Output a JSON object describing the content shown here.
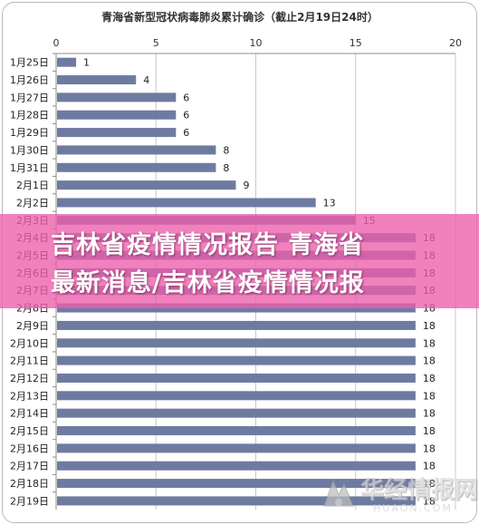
{
  "chart_data": {
    "type": "bar",
    "orientation": "horizontal",
    "title": "青海省新型冠状病毒肺炎累计确诊（截止2月19日24时）",
    "categories": [
      "1月25日",
      "1月26日",
      "1月27日",
      "1月28日",
      "1月29日",
      "1月30日",
      "1月31日",
      "2月1日",
      "2月2日",
      "2月3日",
      "2月4日",
      "2月5日",
      "2月6日",
      "2月7日",
      "2月8日",
      "2月9日",
      "2月10日",
      "2月11日",
      "2月12日",
      "2月13日",
      "2月14日",
      "2月15日",
      "2月16日",
      "2月17日",
      "2月18日",
      "2月19日"
    ],
    "values": [
      1,
      4,
      6,
      6,
      6,
      8,
      8,
      9,
      13,
      15,
      18,
      18,
      18,
      18,
      18,
      18,
      18,
      18,
      18,
      18,
      18,
      18,
      18,
      18,
      18,
      18
    ],
    "data_labels": [
      "1",
      "4",
      "6",
      "6",
      "6",
      "8",
      "8",
      "9",
      "13",
      "15",
      "18",
      "18",
      "18",
      "18",
      "18",
      "18",
      "18",
      "18",
      "18",
      "18",
      "18",
      "18",
      "18",
      "18",
      "18",
      "18"
    ],
    "xlim": [
      0,
      20
    ],
    "x_ticks": [
      "0",
      "5",
      "10",
      "15",
      "20"
    ],
    "axis_position": "top",
    "grid": true,
    "bar_color": "#6e7ba1",
    "grid_color": "#c8c8c8",
    "xlabel": "",
    "ylabel": ""
  },
  "overlay": {
    "line1": "吉林省疫情情况报告 青海省",
    "line2": "最新消息/吉林省疫情情况报",
    "color": "#ec5eaa"
  },
  "watermark": {
    "text": "华经情报网",
    "sub": "HUAON.COM"
  }
}
